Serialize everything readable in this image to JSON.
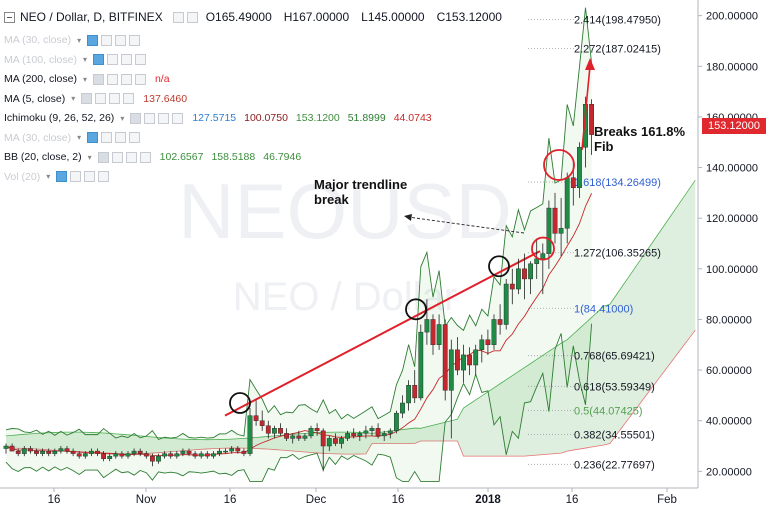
{
  "header": {
    "symbol": "NEO / Dollar, D, BITFINEX",
    "open": "O165.49000",
    "high": "H167.00000",
    "low": "L145.00000",
    "close": "C153.12000"
  },
  "indicators": [
    {
      "name": "MA (30, close)",
      "faded": true,
      "values": []
    },
    {
      "name": "MA (100, close)",
      "faded": true,
      "values": []
    },
    {
      "name": "MA (200, close)",
      "faded": false,
      "values": [
        {
          "text": "n/a",
          "color": "#e0292e"
        }
      ]
    },
    {
      "name": "MA (5, close)",
      "faded": false,
      "values": [
        {
          "text": "137.6460",
          "color": "#c0392b"
        }
      ]
    },
    {
      "name": "Ichimoku (9, 26, 52, 26)",
      "faded": false,
      "values": [
        {
          "text": "127.5715",
          "color": "#2f7fd4"
        },
        {
          "text": "100.0750",
          "color": "#8b1a1a"
        },
        {
          "text": "153.1200",
          "color": "#3c8f3c"
        },
        {
          "text": "51.8999",
          "color": "#2e7d32"
        },
        {
          "text": "44.0743",
          "color": "#c62828"
        }
      ]
    },
    {
      "name": "MA (30, close)",
      "faded": true,
      "values": []
    },
    {
      "name": "BB (20, close, 2)",
      "faded": false,
      "values": [
        {
          "text": "102.6567",
          "color": "#3c8f3c"
        },
        {
          "text": "158.5188",
          "color": "#3c8f3c"
        },
        {
          "text": "46.7946",
          "color": "#3c8f3c"
        }
      ]
    },
    {
      "name": "Vol (20)",
      "faded": true,
      "values": []
    }
  ],
  "annotations": {
    "breaks": "Breaks 161.8%\nFib",
    "trendline": "Major trendline\nbreak"
  },
  "last_price": "153.12000",
  "watermark": {
    "line1": "NEOUSD",
    "line2": "NEO / Dollar"
  },
  "chart_data": {
    "type": "candlestick",
    "ylim": [
      15,
      205
    ],
    "y_ticks": [
      20,
      40,
      60,
      80,
      100,
      120,
      140,
      160,
      180,
      200
    ],
    "y_tick_labels": [
      "20.00000",
      "40.00000",
      "60.00000",
      "80.00000",
      "100.00000",
      "120.00000",
      "140.00000",
      "160.00000",
      "180.00000",
      "200.00000"
    ],
    "x_ticks": [
      "16",
      "Nov",
      "16",
      "Dec",
      "16",
      "2018",
      "16",
      "Feb"
    ],
    "fib_levels": [
      {
        "label": "2.414(198.47950)",
        "value": 198.4795,
        "color": "#131722"
      },
      {
        "label": "2.272(187.02415)",
        "value": 187.02415,
        "color": "#131722"
      },
      {
        "label": "1.618(134.26499)",
        "value": 134.26499,
        "color": "#2f5fd4"
      },
      {
        "label": "1.272(106.35265)",
        "value": 106.35265,
        "color": "#131722"
      },
      {
        "label": "1(84.41000)",
        "value": 84.41,
        "color": "#2f5fd4"
      },
      {
        "label": "0.768(65.69421)",
        "value": 65.69421,
        "color": "#131722"
      },
      {
        "label": "0.618(53.59349)",
        "value": 53.59349,
        "color": "#131722"
      },
      {
        "label": "0.5(44.07425)",
        "value": 44.07425,
        "color": "#55a055"
      },
      {
        "label": "0.382(34.55501)",
        "value": 34.55501,
        "color": "#131722"
      },
      {
        "label": "0.236(22.77697)",
        "value": 22.77697,
        "color": "#131722"
      }
    ],
    "candles": [
      [
        29,
        31,
        27,
        30
      ],
      [
        30,
        31,
        28,
        28
      ],
      [
        28,
        29,
        26,
        27
      ],
      [
        27,
        30,
        26,
        29
      ],
      [
        29,
        30,
        27,
        28
      ],
      [
        28,
        29,
        26,
        27
      ],
      [
        27,
        29,
        26,
        28
      ],
      [
        28,
        29,
        26,
        27
      ],
      [
        27,
        29,
        26,
        28
      ],
      [
        28,
        30,
        27,
        29
      ],
      [
        29,
        30,
        27,
        28
      ],
      [
        28,
        29,
        26,
        27
      ],
      [
        27,
        28,
        25,
        26
      ],
      [
        26,
        28,
        25,
        27
      ],
      [
        27,
        29,
        26,
        28
      ],
      [
        28,
        29,
        26,
        27
      ],
      [
        27,
        28,
        24,
        25
      ],
      [
        25,
        27,
        24,
        26
      ],
      [
        26,
        28,
        25,
        27
      ],
      [
        27,
        28,
        25,
        26
      ],
      [
        26,
        28,
        25,
        27
      ],
      [
        27,
        29,
        26,
        28
      ],
      [
        28,
        29,
        26,
        27
      ],
      [
        27,
        28,
        25,
        26
      ],
      [
        26,
        27,
        22,
        24
      ],
      [
        24,
        27,
        23,
        26
      ],
      [
        26,
        28,
        25,
        27
      ],
      [
        27,
        28,
        25,
        26
      ],
      [
        26,
        28,
        25,
        27
      ],
      [
        27,
        29,
        26,
        28
      ],
      [
        28,
        29,
        26,
        27
      ],
      [
        27,
        28,
        25,
        26
      ],
      [
        26,
        28,
        25,
        27
      ],
      [
        27,
        28,
        25,
        26
      ],
      [
        26,
        28,
        25,
        27
      ],
      [
        27,
        29,
        26,
        28
      ],
      [
        28,
        29,
        27,
        28
      ],
      [
        28,
        30,
        27,
        29
      ],
      [
        29,
        30,
        27,
        28
      ],
      [
        28,
        29,
        26,
        27
      ],
      [
        27,
        45,
        26,
        42
      ],
      [
        42,
        48,
        38,
        40
      ],
      [
        40,
        44,
        36,
        38
      ],
      [
        38,
        40,
        33,
        35
      ],
      [
        35,
        38,
        33,
        37
      ],
      [
        37,
        39,
        34,
        35
      ],
      [
        35,
        37,
        32,
        33
      ],
      [
        33,
        35,
        31,
        34
      ],
      [
        34,
        36,
        32,
        33
      ],
      [
        33,
        35,
        32,
        34
      ],
      [
        34,
        38,
        33,
        37
      ],
      [
        37,
        39,
        34,
        36
      ],
      [
        36,
        37,
        20,
        30
      ],
      [
        30,
        34,
        28,
        33
      ],
      [
        33,
        35,
        30,
        31
      ],
      [
        31,
        34,
        29,
        33
      ],
      [
        33,
        36,
        32,
        35
      ],
      [
        35,
        37,
        33,
        34
      ],
      [
        34,
        36,
        32,
        35
      ],
      [
        35,
        38,
        33,
        36
      ],
      [
        36,
        38,
        34,
        37
      ],
      [
        37,
        39,
        33,
        34
      ],
      [
        34,
        36,
        32,
        35
      ],
      [
        35,
        37,
        33,
        36
      ],
      [
        36,
        44,
        35,
        43
      ],
      [
        43,
        50,
        41,
        47
      ],
      [
        47,
        56,
        44,
        54
      ],
      [
        54,
        60,
        47,
        49
      ],
      [
        49,
        78,
        48,
        75
      ],
      [
        75,
        88,
        70,
        80
      ],
      [
        80,
        82,
        66,
        70
      ],
      [
        70,
        82,
        68,
        78
      ],
      [
        78,
        80,
        48,
        52
      ],
      [
        52,
        72,
        33,
        68
      ],
      [
        68,
        73,
        58,
        60
      ],
      [
        60,
        70,
        55,
        66
      ],
      [
        66,
        69,
        58,
        62
      ],
      [
        62,
        70,
        58,
        68
      ],
      [
        68,
        74,
        63,
        72
      ],
      [
        72,
        76,
        66,
        70
      ],
      [
        70,
        82,
        68,
        80
      ],
      [
        80,
        86,
        74,
        78
      ],
      [
        78,
        96,
        76,
        94
      ],
      [
        94,
        100,
        86,
        92
      ],
      [
        92,
        104,
        90,
        100
      ],
      [
        100,
        106,
        88,
        96
      ],
      [
        96,
        103,
        90,
        102
      ],
      [
        102,
        112,
        96,
        104
      ],
      [
        104,
        110,
        90,
        106
      ],
      [
        106,
        127,
        100,
        124
      ],
      [
        124,
        130,
        110,
        114
      ],
      [
        114,
        128,
        105,
        116
      ],
      [
        116,
        138,
        110,
        136
      ],
      [
        136,
        142,
        125,
        132
      ],
      [
        132,
        150,
        128,
        148
      ],
      [
        148,
        168,
        140,
        165
      ],
      [
        165,
        167,
        145,
        153
      ]
    ]
  }
}
